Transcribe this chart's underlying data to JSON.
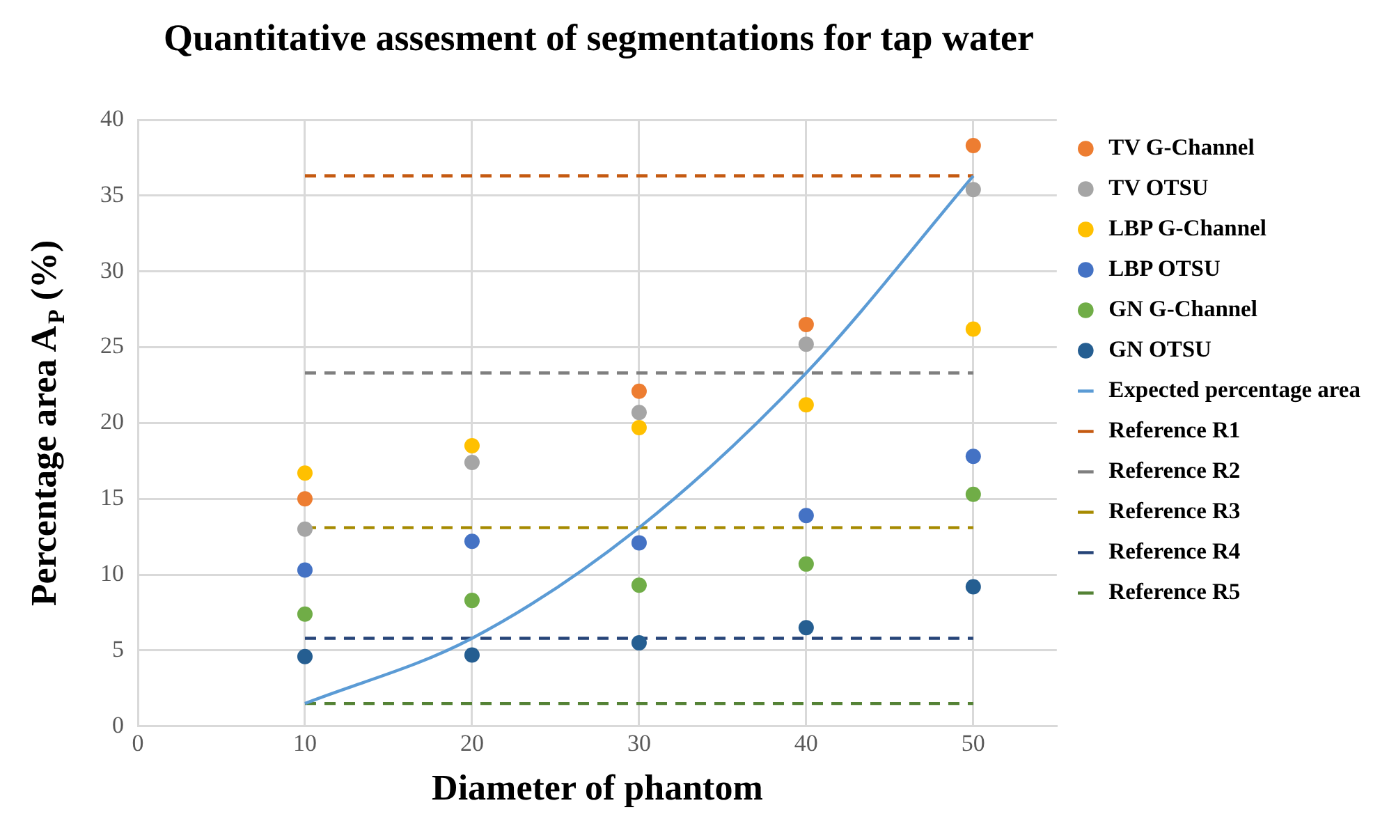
{
  "chart_data": {
    "type": "scatter",
    "title": "Quantitative assesment of segmentations for tap water",
    "xlabel": "Diameter of phantom",
    "ylabel": "Percentage area A$_{P}$ (%)",
    "x": [
      10,
      20,
      30,
      40,
      50
    ],
    "series": [
      {
        "name": "TV G-Channel",
        "color": "#ed7d31",
        "marker": "circle",
        "values": [
          15,
          null,
          22.1,
          26.5,
          38.3
        ]
      },
      {
        "name": "TV OTSU",
        "color": "#a5a5a5",
        "marker": "circle",
        "values": [
          13,
          17.4,
          20.7,
          25.2,
          35.4
        ]
      },
      {
        "name": "LBP G-Channel",
        "color": "#ffc000",
        "marker": "circle",
        "values": [
          16.7,
          18.5,
          19.7,
          21.2,
          26.2
        ]
      },
      {
        "name": "LBP OTSU",
        "color": "#4472c4",
        "marker": "circle",
        "values": [
          10.3,
          12.2,
          12.1,
          13.9,
          17.8
        ]
      },
      {
        "name": "GN G-Channel",
        "color": "#70ad47",
        "marker": "circle",
        "values": [
          7.4,
          8.3,
          9.3,
          10.7,
          15.3
        ]
      },
      {
        "name": "GN OTSU",
        "color": "#255e91",
        "marker": "circle",
        "values": [
          4.6,
          4.7,
          5.5,
          6.5,
          9.2
        ]
      },
      {
        "name": "Expected percentage area",
        "type": "line",
        "color": "#5b9bd5",
        "line_style": "solid",
        "x": [
          10,
          20,
          30,
          40,
          50
        ],
        "values": [
          1.5,
          5.8,
          13.1,
          23.3,
          36.3
        ]
      },
      {
        "name": "Reference R1",
        "type": "line",
        "color": "#c55a11",
        "line_style": "dashed",
        "x": [
          10,
          50
        ],
        "values": [
          36.3,
          36.3
        ]
      },
      {
        "name": "Reference R2",
        "type": "line",
        "color": "#7f7f7f",
        "line_style": "dashed",
        "x": [
          10,
          50
        ],
        "values": [
          23.3,
          23.3
        ]
      },
      {
        "name": "Reference R3",
        "type": "line",
        "color": "#a68a00",
        "line_style": "dashed",
        "x": [
          10,
          50
        ],
        "values": [
          13.1,
          13.1
        ]
      },
      {
        "name": "Reference R4",
        "type": "line",
        "color": "#264478",
        "line_style": "dashed",
        "x": [
          10,
          50
        ],
        "values": [
          5.8,
          5.8
        ]
      },
      {
        "name": "Reference R5",
        "type": "line",
        "color": "#548235",
        "line_style": "dashed",
        "x": [
          10,
          50
        ],
        "values": [
          1.5,
          1.5
        ]
      }
    ],
    "xlim": [
      0,
      55
    ],
    "xticks": [
      0,
      10,
      20,
      30,
      40,
      50
    ],
    "ylim": [
      0,
      40
    ],
    "yticks": [
      0,
      5,
      10,
      15,
      20,
      25,
      30,
      35,
      40
    ],
    "grid": true,
    "legend": "right"
  }
}
